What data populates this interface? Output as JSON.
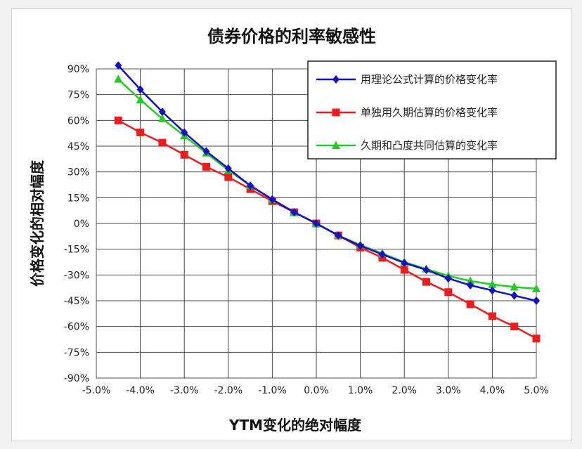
{
  "chart_data": {
    "type": "line",
    "title": "债券价格的利率敏感性",
    "xlabel": "YTM变化的绝对幅度",
    "ylabel": "价格变化的相对幅度",
    "xlim": [
      -5.0,
      5.0
    ],
    "ylim": [
      -90,
      90
    ],
    "grid": true,
    "legend_position": "top-right",
    "x_ticks": [
      "-5.0%",
      "-4.0%",
      "-3.0%",
      "-2.0%",
      "-1.0%",
      "0.0%",
      "1.0%",
      "2.0%",
      "3.0%",
      "4.0%",
      "5.0%"
    ],
    "y_ticks": [
      "90%",
      "75%",
      "60%",
      "45%",
      "30%",
      "15%",
      "0%",
      "-15%",
      "-30%",
      "-45%",
      "-60%",
      "-75%",
      "-90%"
    ],
    "x": [
      -4.5,
      -4.0,
      -3.5,
      -3.0,
      -2.5,
      -2.0,
      -1.5,
      -1.0,
      -0.5,
      0.0,
      0.5,
      1.0,
      1.5,
      2.0,
      2.5,
      3.0,
      3.5,
      4.0,
      4.5,
      5.0
    ],
    "series": [
      {
        "name": "用理论公式计算的价格变化率",
        "color": "#1010c8",
        "marker": "diamond",
        "values": [
          92,
          78,
          65,
          53,
          42,
          32,
          22,
          14,
          6.5,
          0,
          -7,
          -13,
          -18,
          -23,
          -27,
          -32,
          -36,
          -39,
          -42,
          -45
        ]
      },
      {
        "name": "单独用久期估算的价格变化率",
        "color": "#ee1c1c",
        "marker": "square",
        "values": [
          60,
          53,
          47,
          40,
          33,
          27,
          20,
          13,
          6.5,
          0,
          -7,
          -14,
          -20,
          -27,
          -34,
          -40,
          -47,
          -54,
          -60,
          -67
        ]
      },
      {
        "name": "久期和凸度共同估算的变化率",
        "color": "#22cc22",
        "marker": "triangle",
        "values": [
          84,
          72,
          61,
          51,
          41,
          31,
          22,
          14,
          6.5,
          0,
          -7,
          -12.5,
          -17.5,
          -22.5,
          -26.5,
          -30.5,
          -33.5,
          -35.5,
          -37,
          -38
        ]
      }
    ]
  }
}
